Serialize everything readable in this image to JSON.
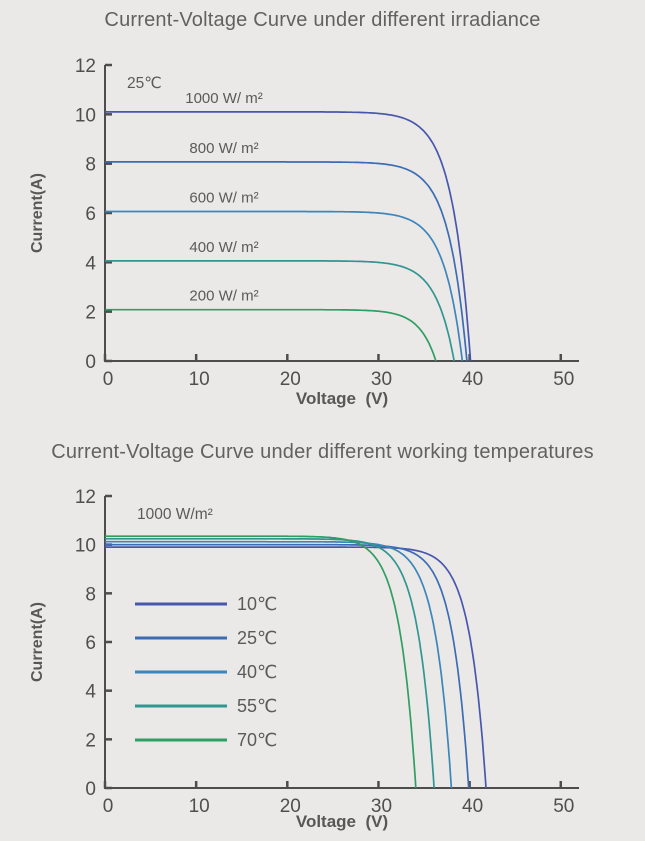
{
  "page": {
    "background": "#eae9e7",
    "axis_color": "#4d4d4d",
    "tick_label_color": "#4f4f4f",
    "annotation_color": "#5a5a5a"
  },
  "chart_data": [
    {
      "type": "line",
      "title": "Current-Voltage Curve under different irradiance",
      "xlabel": "Voltage  (V)",
      "ylabel": "Current(A)",
      "xlim": [
        0,
        52
      ],
      "ylim": [
        0,
        12
      ],
      "xticks": [
        0,
        10,
        20,
        30,
        40,
        50
      ],
      "yticks": [
        0,
        2,
        4,
        6,
        8,
        10,
        12
      ],
      "grid": false,
      "annotation": "25℃",
      "legend_style": "inline",
      "series": [
        {
          "name": "1000 W/ m²",
          "isc_A": 10.1,
          "voc_V": 40.1,
          "knee_V": 2.0,
          "color": "#4857ae"
        },
        {
          "name": "800 W/ m²",
          "isc_A": 8.07,
          "voc_V": 39.7,
          "knee_V": 2.0,
          "color": "#3c6cb4"
        },
        {
          "name": "600 W/ m²",
          "isc_A": 6.06,
          "voc_V": 39.2,
          "knee_V": 2.0,
          "color": "#3d85bb"
        },
        {
          "name": "400 W/ m²",
          "isc_A": 4.06,
          "voc_V": 38.3,
          "knee_V": 2.0,
          "color": "#319691"
        },
        {
          "name": "200 W/ m²",
          "isc_A": 2.08,
          "voc_V": 36.3,
          "knee_V": 1.8,
          "color": "#2f9e64"
        }
      ]
    },
    {
      "type": "line",
      "title": "Current-Voltage Curve under different working temperatures",
      "xlabel": "Voltage  (V)",
      "ylabel": "Current(A)",
      "xlim": [
        0,
        52
      ],
      "ylim": [
        0,
        12
      ],
      "xticks": [
        0,
        10,
        20,
        30,
        40,
        50
      ],
      "yticks": [
        0,
        2,
        4,
        6,
        8,
        10,
        12
      ],
      "grid": false,
      "annotation": "1000 W/m²",
      "legend_style": "list",
      "series": [
        {
          "name": "10℃",
          "isc_A": 9.9,
          "voc_V": 41.8,
          "knee_V": 1.8,
          "color": "#4857ae"
        },
        {
          "name": "25℃",
          "isc_A": 10.0,
          "voc_V": 39.9,
          "knee_V": 1.8,
          "color": "#3c6cb4"
        },
        {
          "name": "40℃",
          "isc_A": 10.12,
          "voc_V": 38.0,
          "knee_V": 1.8,
          "color": "#3d85bb"
        },
        {
          "name": "55℃",
          "isc_A": 10.24,
          "voc_V": 36.1,
          "knee_V": 1.8,
          "color": "#319691"
        },
        {
          "name": "70℃",
          "isc_A": 10.35,
          "voc_V": 34.1,
          "knee_V": 1.8,
          "color": "#2f9e64"
        }
      ]
    }
  ]
}
